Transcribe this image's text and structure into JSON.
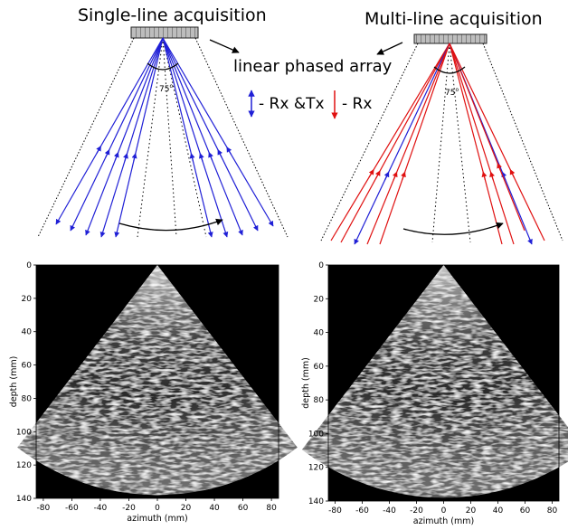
{
  "diagram": {
    "left_title": "Single-line acquisition",
    "right_title": "Multi-line acquisition",
    "array_label": "linear phased array",
    "angle_label_left": "75",
    "angle_label_right": "75",
    "angle_unit": "o",
    "legend": {
      "rx_tx_label": "- Rx &Tx",
      "rx_label": "- Rx",
      "rx_tx_color": "#1f1fd6",
      "rx_color": "#e01010"
    }
  },
  "images": [
    {
      "name": "single-line",
      "xlabel": "azimuth (mm)",
      "ylabel": "depth (mm)",
      "x_ticks": [
        "-80",
        "-60",
        "-40",
        "-20",
        "0",
        "20",
        "40",
        "60",
        "80"
      ],
      "y_ticks": [
        "0",
        "20",
        "40",
        "60",
        "80",
        "100",
        "120",
        "140"
      ],
      "xlim": [
        -85,
        85
      ],
      "ylim": [
        0,
        140
      ]
    },
    {
      "name": "multi-line",
      "xlabel": "azimuth (mm)",
      "ylabel": "depth (mm)",
      "x_ticks": [
        "-80",
        "-60",
        "-40",
        "-20",
        "0",
        "20",
        "40",
        "60",
        "80"
      ],
      "y_ticks": [
        "0",
        "20",
        "40",
        "60",
        "80",
        "100",
        "120",
        "140"
      ],
      "xlim": [
        -85,
        85
      ],
      "ylim": [
        0,
        140
      ]
    }
  ]
}
